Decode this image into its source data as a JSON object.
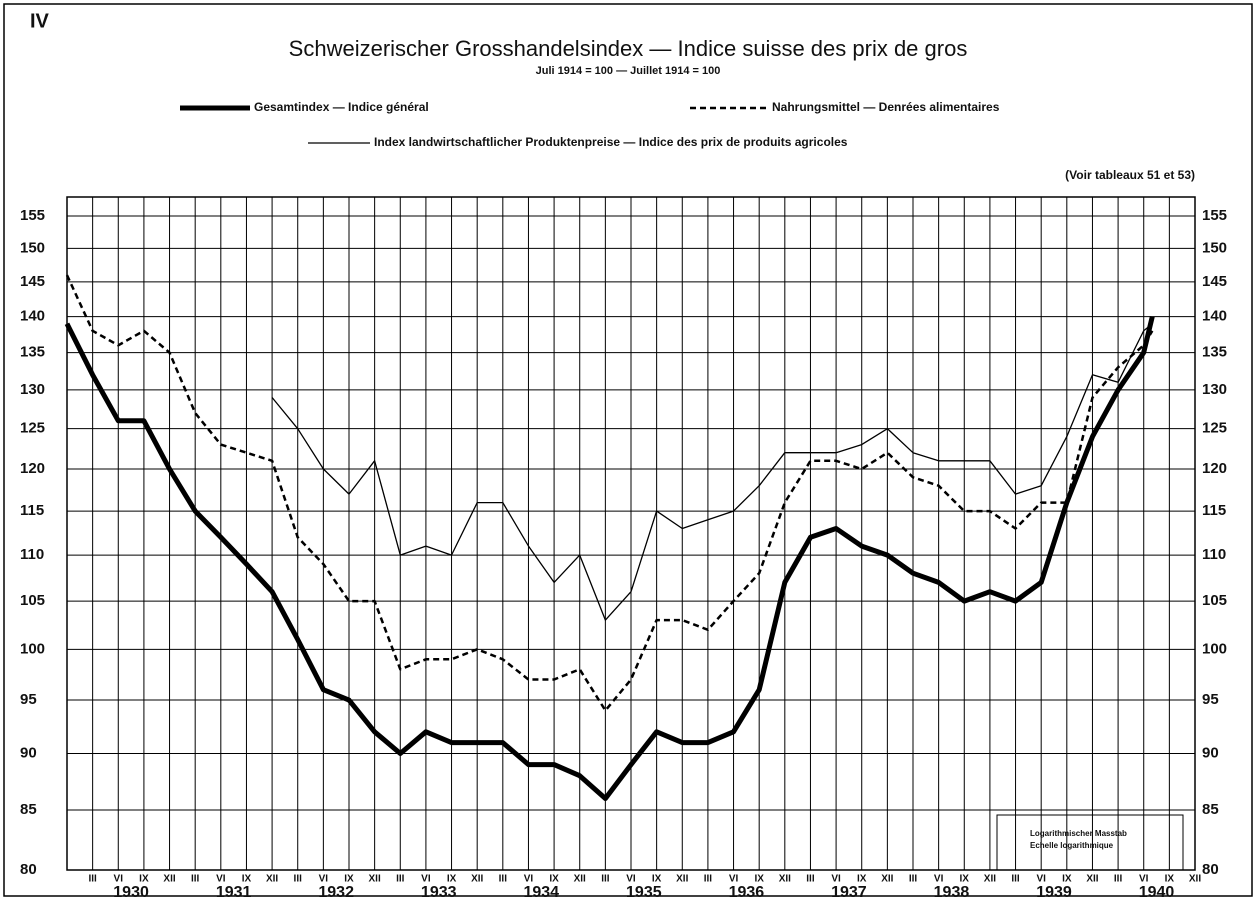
{
  "chart_data": {
    "type": "line",
    "panel": "IV",
    "title": "Schweizerischer Grosshandelsindex — Indice suisse des prix de gros",
    "subtitle": "Juli 1914 = 100 — Juillet 1914 = 100",
    "note": "(Voir tableaux 51 et 53)",
    "scale_note": [
      "Logarithmischer Masstab",
      "Echelle logarithmique"
    ],
    "log_scale": true,
    "grid": true,
    "x": [
      "1929-12",
      "1930-03",
      "1930-06",
      "1930-09",
      "1930-12",
      "1931-03",
      "1931-06",
      "1931-09",
      "1931-12",
      "1932-03",
      "1932-06",
      "1932-09",
      "1932-12",
      "1933-03",
      "1933-06",
      "1933-09",
      "1933-12",
      "1934-03",
      "1934-06",
      "1934-09",
      "1934-12",
      "1935-03",
      "1935-06",
      "1935-09",
      "1935-12",
      "1936-03",
      "1936-06",
      "1936-09",
      "1936-12",
      "1937-03",
      "1937-06",
      "1937-09",
      "1937-12",
      "1938-03",
      "1938-06",
      "1938-09",
      "1938-12",
      "1939-03",
      "1939-06",
      "1939-09",
      "1939-12",
      "1940-03",
      "1940-06",
      "1940-07"
    ],
    "xlim": [
      "1929-12",
      "1940-12"
    ],
    "xticks": [
      {
        "value": "1930-03",
        "label": "III"
      },
      {
        "value": "1930-06",
        "label": "VI"
      },
      {
        "value": "1930-09",
        "label": "IX"
      },
      {
        "value": "1930-12",
        "label": "XII"
      },
      {
        "value": "1931-03",
        "label": "III"
      },
      {
        "value": "1931-06",
        "label": "VI"
      },
      {
        "value": "1931-09",
        "label": "IX"
      },
      {
        "value": "1931-12",
        "label": "XII"
      },
      {
        "value": "1932-03",
        "label": "III"
      },
      {
        "value": "1932-06",
        "label": "VI"
      },
      {
        "value": "1932-09",
        "label": "IX"
      },
      {
        "value": "1932-12",
        "label": "XII"
      },
      {
        "value": "1933-03",
        "label": "III"
      },
      {
        "value": "1933-06",
        "label": "VI"
      },
      {
        "value": "1933-09",
        "label": "IX"
      },
      {
        "value": "1933-12",
        "label": "XII"
      },
      {
        "value": "1934-03",
        "label": "III"
      },
      {
        "value": "1934-06",
        "label": "VI"
      },
      {
        "value": "1934-09",
        "label": "IX"
      },
      {
        "value": "1934-12",
        "label": "XII"
      },
      {
        "value": "1935-03",
        "label": "III"
      },
      {
        "value": "1935-06",
        "label": "VI"
      },
      {
        "value": "1935-09",
        "label": "IX"
      },
      {
        "value": "1935-12",
        "label": "XII"
      },
      {
        "value": "1936-03",
        "label": "III"
      },
      {
        "value": "1936-06",
        "label": "VI"
      },
      {
        "value": "1936-09",
        "label": "IX"
      },
      {
        "value": "1936-12",
        "label": "XII"
      },
      {
        "value": "1937-03",
        "label": "III"
      },
      {
        "value": "1937-06",
        "label": "VI"
      },
      {
        "value": "1937-09",
        "label": "IX"
      },
      {
        "value": "1937-12",
        "label": "XII"
      },
      {
        "value": "1938-03",
        "label": "III"
      },
      {
        "value": "1938-06",
        "label": "VI"
      },
      {
        "value": "1938-09",
        "label": "IX"
      },
      {
        "value": "1938-12",
        "label": "XII"
      },
      {
        "value": "1939-03",
        "label": "III"
      },
      {
        "value": "1939-06",
        "label": "VI"
      },
      {
        "value": "1939-09",
        "label": "IX"
      },
      {
        "value": "1939-12",
        "label": "XII"
      },
      {
        "value": "1940-03",
        "label": "III"
      },
      {
        "value": "1940-06",
        "label": "VI"
      },
      {
        "value": "1940-09",
        "label": "IX"
      },
      {
        "value": "1940-12",
        "label": "XII"
      }
    ],
    "years": [
      "1930",
      "1931",
      "1932",
      "1933",
      "1934",
      "1935",
      "1936",
      "1937",
      "1938",
      "1939",
      "1940"
    ],
    "ylim": [
      80,
      158
    ],
    "yticks": [
      80,
      85,
      90,
      95,
      100,
      105,
      110,
      115,
      120,
      125,
      130,
      135,
      140,
      145,
      150,
      155
    ],
    "series": [
      {
        "name": "Gesamtindex — Indice général",
        "color": "#000000",
        "width": 5,
        "dash": "none",
        "values": [
          139,
          132,
          126,
          126,
          120,
          115,
          112,
          109,
          106,
          101,
          96,
          95,
          92,
          90,
          92,
          91,
          91,
          91,
          89,
          89,
          88,
          86,
          89,
          92,
          91,
          91,
          92,
          96,
          107,
          112,
          113,
          111,
          110,
          108,
          107,
          105,
          106,
          105,
          107,
          116,
          124,
          130,
          135,
          140
        ]
      },
      {
        "name": "Nahrungsmittel — Denrées alimentaires",
        "color": "#000000",
        "width": 2.5,
        "dash": "6 4",
        "values": [
          146,
          138,
          136,
          138,
          135,
          127,
          123,
          122,
          121,
          112,
          109,
          105,
          105,
          98,
          99,
          99,
          100,
          99,
          97,
          97,
          98,
          94,
          97,
          103,
          103,
          102,
          105,
          108,
          116,
          121,
          121,
          120,
          122,
          119,
          118,
          115,
          115,
          113,
          116,
          116,
          129,
          133,
          136,
          138
        ]
      },
      {
        "name": "Index landwirtschaftlicher Produktenpreise — Indice des prix de produits agricoles",
        "color": "#000000",
        "width": 1.3,
        "dash": "none",
        "values": [
          null,
          null,
          null,
          null,
          null,
          null,
          null,
          null,
          129,
          125,
          120,
          117,
          121,
          110,
          111,
          110,
          116,
          116,
          111,
          107,
          110,
          103,
          106,
          115,
          113,
          114,
          115,
          118,
          122,
          122,
          122,
          123,
          125,
          122,
          121,
          121,
          121,
          117,
          118,
          124,
          132,
          131,
          138,
          139
        ]
      }
    ]
  }
}
